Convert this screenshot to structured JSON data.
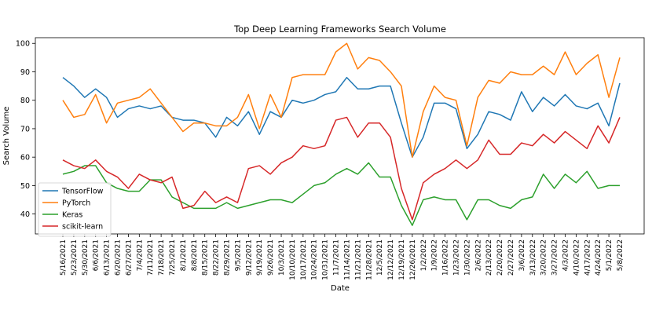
{
  "chart_data": {
    "type": "line",
    "title": "Top Deep Learning Frameworks Search Volume",
    "xlabel": "Date",
    "ylabel": "Search Volume",
    "ylim": [
      33,
      102
    ],
    "yticks": [
      40,
      50,
      60,
      70,
      80,
      90,
      100
    ],
    "grid": false,
    "legend_position": "lower-left",
    "x": [
      "5/16/2021",
      "5/23/2021",
      "5/30/2021",
      "6/6/2021",
      "6/13/2021",
      "6/20/2021",
      "6/27/2021",
      "7/4/2021",
      "7/11/2021",
      "7/18/2021",
      "7/25/2021",
      "8/1/2021",
      "8/8/2021",
      "8/15/2021",
      "8/22/2021",
      "8/29/2021",
      "9/5/2021",
      "9/12/2021",
      "9/19/2021",
      "9/26/2021",
      "10/3/2021",
      "10/10/2021",
      "10/17/2021",
      "10/24/2021",
      "10/31/2021",
      "11/7/2021",
      "11/14/2021",
      "11/21/2021",
      "11/28/2021",
      "12/5/2021",
      "12/12/2021",
      "12/19/2021",
      "12/26/2021",
      "1/2/2022",
      "1/9/2022",
      "1/16/2022",
      "1/23/2022",
      "1/30/2022",
      "2/6/2022",
      "2/13/2022",
      "2/20/2022",
      "2/27/2022",
      "3/6/2022",
      "3/13/2022",
      "3/20/2022",
      "3/27/2022",
      "4/3/2022",
      "4/10/2022",
      "4/17/2022",
      "4/24/2022",
      "5/1/2022",
      "5/8/2022"
    ],
    "series": [
      {
        "name": "TensorFlow",
        "color": "#1f77b4",
        "values": [
          88,
          85,
          81,
          84,
          81,
          74,
          77,
          78,
          77,
          78,
          74,
          73,
          73,
          72,
          67,
          74,
          71,
          76,
          68,
          76,
          74,
          80,
          79,
          80,
          82,
          83,
          88,
          84,
          84,
          85,
          85,
          72,
          60,
          67,
          79,
          79,
          77,
          63,
          68,
          76,
          75,
          73,
          83,
          76,
          81,
          78,
          82,
          78,
          77,
          79,
          71,
          86
        ]
      },
      {
        "name": "PyTorch",
        "color": "#ff7f0e",
        "values": [
          80,
          74,
          75,
          82,
          72,
          79,
          80,
          81,
          84,
          79,
          74,
          69,
          72,
          72,
          71,
          71,
          74,
          82,
          70,
          82,
          74,
          88,
          89,
          89,
          89,
          97,
          100,
          91,
          95,
          94,
          90,
          85,
          60,
          76,
          85,
          81,
          80,
          64,
          81,
          87,
          86,
          90,
          89,
          89,
          92,
          89,
          97,
          89,
          93,
          96,
          81,
          95
        ]
      },
      {
        "name": "Keras",
        "color": "#2ca02c",
        "values": [
          54,
          55,
          57,
          57,
          51,
          49,
          48,
          48,
          52,
          52,
          46,
          44,
          42,
          42,
          42,
          44,
          42,
          43,
          44,
          45,
          45,
          44,
          47,
          50,
          51,
          54,
          56,
          54,
          58,
          53,
          53,
          43,
          36,
          45,
          46,
          45,
          45,
          38,
          45,
          45,
          43,
          42,
          45,
          46,
          54,
          49,
          54,
          51,
          55,
          49,
          50,
          50
        ]
      },
      {
        "name": "scikit-learn",
        "color": "#d62728",
        "values": [
          59,
          57,
          56,
          59,
          55,
          53,
          49,
          54,
          52,
          51,
          53,
          42,
          43,
          48,
          44,
          46,
          44,
          56,
          57,
          54,
          58,
          60,
          64,
          63,
          64,
          73,
          74,
          67,
          72,
          72,
          67,
          49,
          38,
          51,
          54,
          56,
          59,
          56,
          59,
          66,
          61,
          61,
          65,
          64,
          68,
          65,
          69,
          66,
          63,
          71,
          65,
          74
        ]
      }
    ]
  }
}
